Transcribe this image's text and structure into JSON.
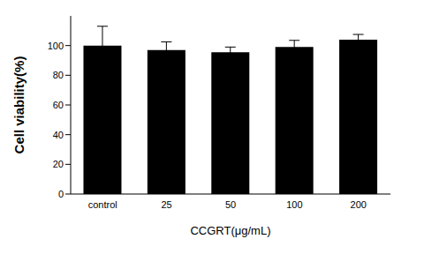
{
  "chart_data": {
    "type": "bar",
    "categories": [
      "control",
      "25",
      "50",
      "100",
      "200"
    ],
    "values": [
      100,
      97,
      95.5,
      99,
      104
    ],
    "error": [
      13,
      5.5,
      3.5,
      4.5,
      3.5
    ],
    "color": "#000000",
    "x_label": "CCGRT(μg/mL)",
    "y_label": "Cell viability(%)",
    "ylim": [
      0,
      120
    ],
    "yticks": [
      0,
      20,
      40,
      60,
      80,
      100
    ],
    "grid": false
  }
}
